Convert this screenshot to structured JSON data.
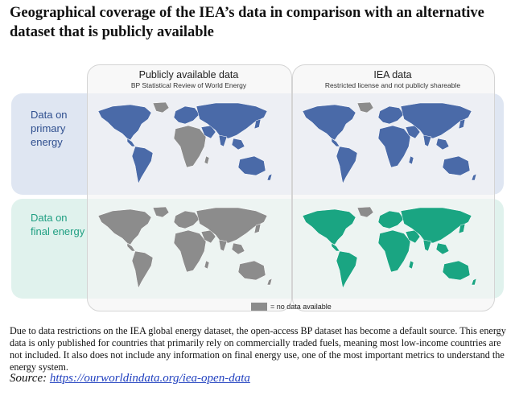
{
  "title": "Geographical coverage of the IEA’s data in comparison with an alternative dataset that is publicly available",
  "columns": [
    {
      "heading": "Publicly available data",
      "subheading": "BP Statistical Review of World Energy"
    },
    {
      "heading": "IEA data",
      "subheading": "Restricted license and not publicly shareable"
    }
  ],
  "rows": [
    {
      "label_line1": "Data on",
      "label_line2": "primary",
      "label_line3": "energy"
    },
    {
      "label_line1": "Data on",
      "label_line2": "final energy"
    }
  ],
  "maps": [
    {
      "row": "primary",
      "column": "public",
      "fill": "#4a6aa8"
    },
    {
      "row": "primary",
      "column": "iea",
      "fill": "#4a6aa8"
    },
    {
      "row": "final",
      "column": "public",
      "fill": "#8c8c8c"
    },
    {
      "row": "final",
      "column": "iea",
      "fill": "#1aa582"
    }
  ],
  "colors": {
    "no_data": "#8c8c8c",
    "primary": "#4a6aa8",
    "final": "#1aa582"
  },
  "legend": {
    "label": "= no data available"
  },
  "caption": "Due to data restrictions on the IEA global energy dataset, the open-access BP dataset has become a default source. This energy data is only published for countries that primarily rely on commercially traded fuels, meaning most low-income countries are not included. It also does not include any information on final energy use, one of the most important metrics to understand the energy system.",
  "source": {
    "prefix": "Source: ",
    "link_text": "https://ourworldindata.org/iea-open-data"
  }
}
